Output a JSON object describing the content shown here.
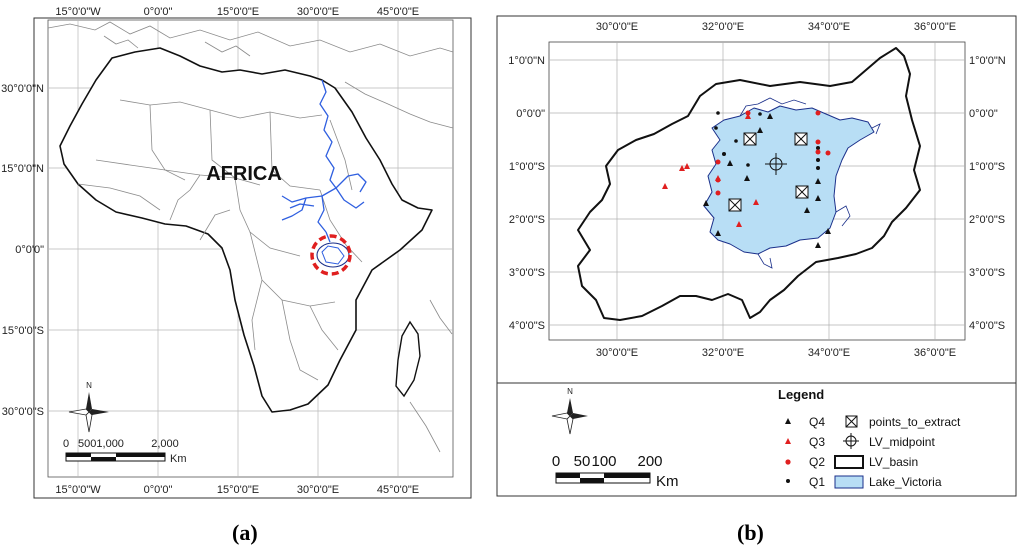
{
  "panel_a": {
    "title": "AFRICA",
    "lon_ticks": [
      "15°0'0\"W",
      "0°0'0\"",
      "15°0'0\"E",
      "30°0'0\"E",
      "45°0'0\"E"
    ],
    "lat_ticks": [
      "30°0'0\"N",
      "15°0'0\"N",
      "0°0'0\"",
      "15°0'0\"S",
      "30°0'0\"S"
    ],
    "north_label": "N",
    "scale_labels": [
      "0",
      "5001,000",
      "2,000"
    ],
    "scale_unit": "Km",
    "caption": "(a)"
  },
  "panel_b": {
    "lon_ticks": [
      "30°0'0\"E",
      "32°0'0\"E",
      "34°0'0\"E",
      "36°0'0\"E"
    ],
    "lat_ticks": [
      "1°0'0\"N",
      "0°0'0\"",
      "1°0'0\"S",
      "2°0'0\"S",
      "3°0'0\"S",
      "4°0'0\"S"
    ],
    "north_label": "N",
    "scale_labels": [
      "0",
      "50",
      "100",
      "200"
    ],
    "scale_unit": "Km",
    "legend_title": "Legend",
    "legend_items": {
      "q4": "Q4",
      "q3": "Q3",
      "q2": "Q2",
      "q1": "Q1",
      "points_to_extract": "points_to_extract",
      "lv_midpoint": "LV_midpoint",
      "lv_basin": "LV_basin",
      "lake_victoria": "Lake_Victoria"
    },
    "caption": "(b)"
  },
  "colors": {
    "river": "#2f5fe0",
    "highlight_circle": "#e01f1f",
    "lake": "#b8def5",
    "lake_outline": "#1a2f8a",
    "q3_q2": "#e01f1f",
    "q1_q4": "#000000",
    "grid": "#b0b0b0"
  }
}
